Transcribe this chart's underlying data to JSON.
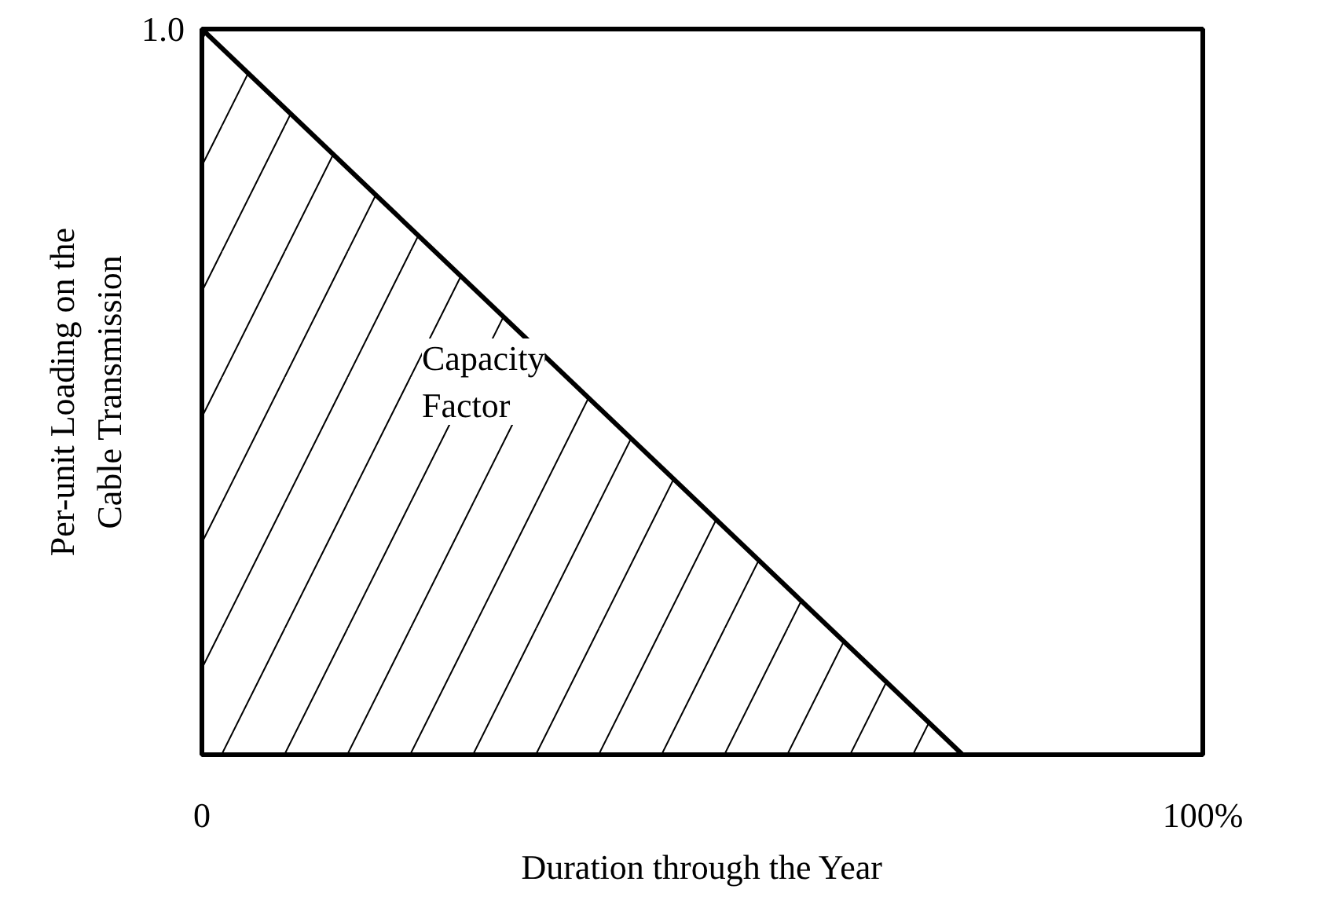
{
  "chart_data": {
    "type": "area",
    "xlabel": "Duration through the Year",
    "ylabel": "Per-unit Loading on the\nCable Transmission",
    "x": [
      0,
      76
    ],
    "series": [
      {
        "color": "#000000",
        "values": [
          1.0,
          0.0
        ]
      }
    ],
    "xlim": [
      0,
      100
    ],
    "ylim": [
      0,
      1.0
    ],
    "xticks": [
      {
        "value": 0,
        "label": "0"
      },
      {
        "value": 100,
        "label": "100%"
      }
    ],
    "yticks": [
      {
        "value": 1.0,
        "label": "1.0"
      }
    ],
    "annotations": [
      "Capacity\nFactor"
    ],
    "marker": "none"
  }
}
